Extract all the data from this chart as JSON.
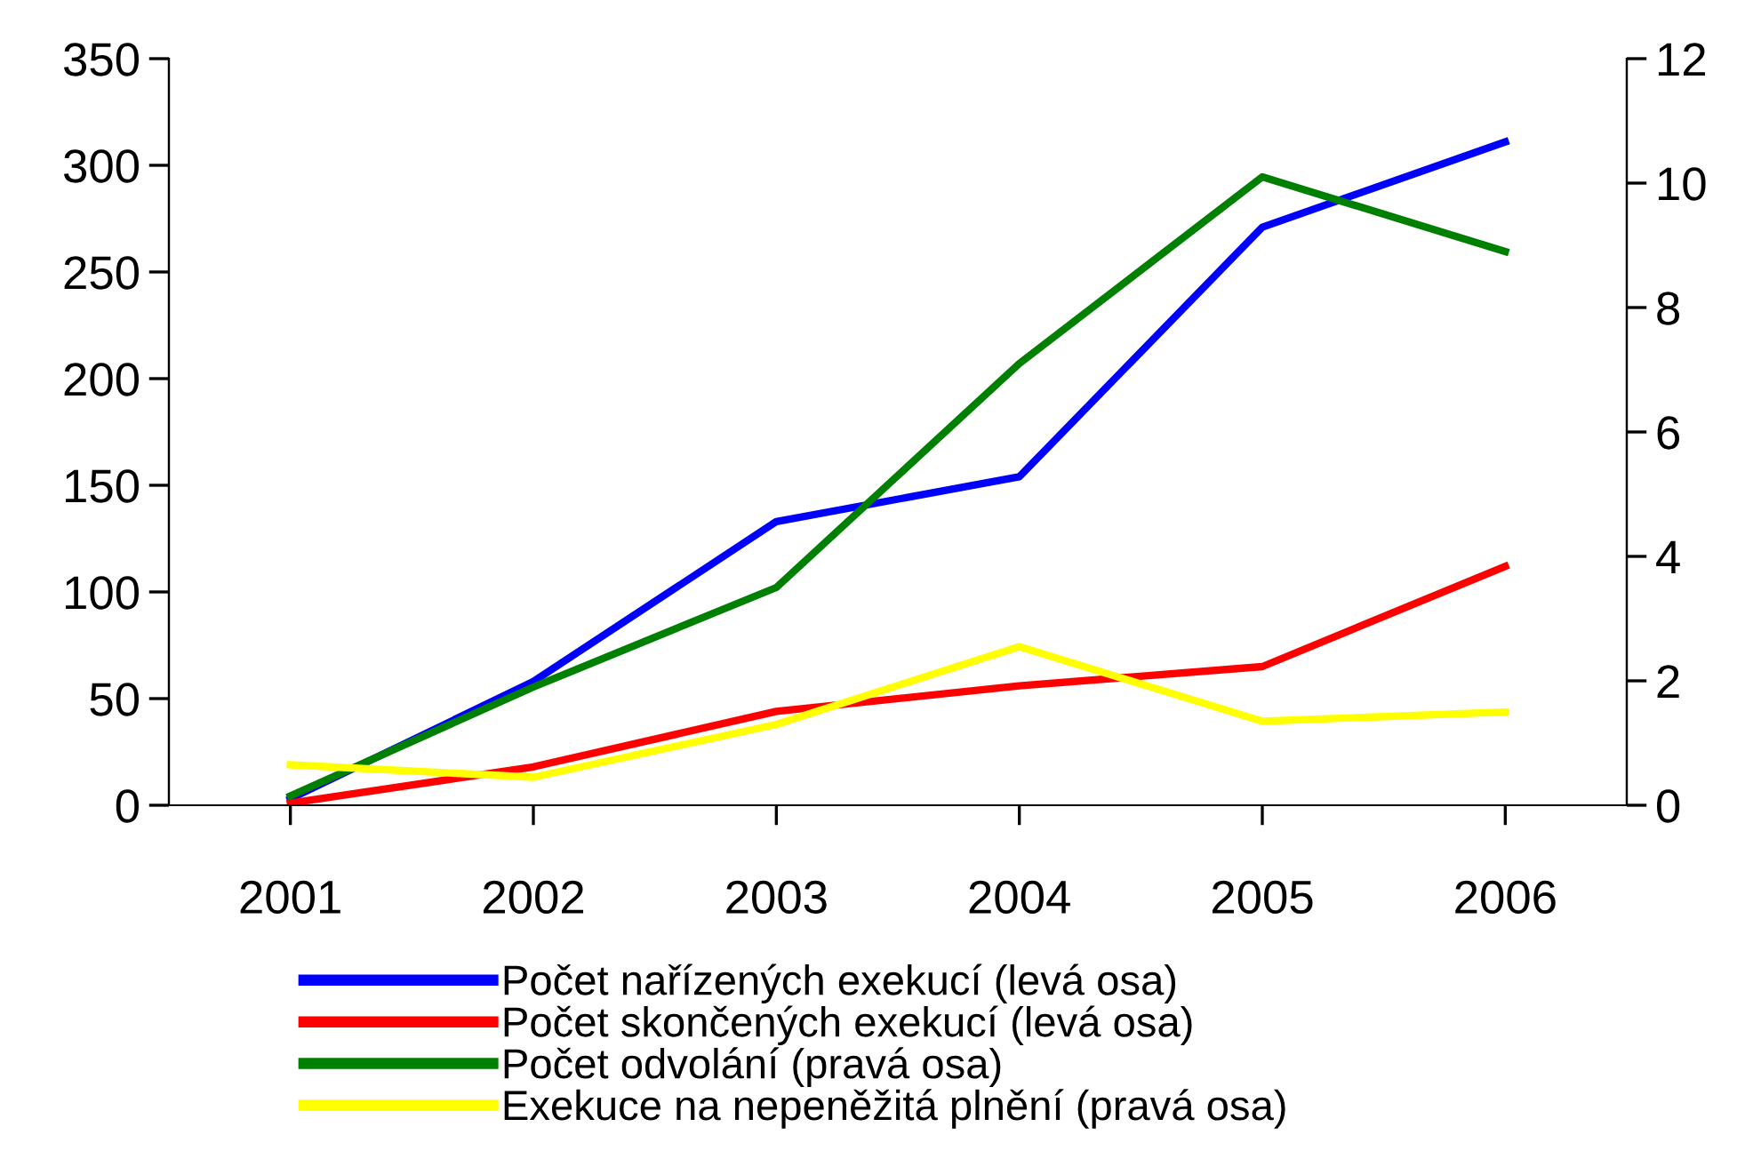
{
  "chart_data": {
    "type": "line",
    "categories": [
      "2001",
      "2002",
      "2003",
      "2004",
      "2005",
      "2006"
    ],
    "series": [
      {
        "name": "Počet nařízených exekucí (levá osa)",
        "color": "#0000ff",
        "values": [
          3,
          58,
          133,
          154,
          271,
          311
        ]
      },
      {
        "name": "Počet skončených exekucí (levá osa)",
        "color": "#ff0000",
        "values": [
          1,
          18,
          44,
          56,
          65,
          112
        ]
      },
      {
        "name": "Počet odvolání (pravá osa)",
        "color": "#008000",
        "axis": "y2",
        "values": [
          0.15,
          1.9,
          3.5,
          7.1,
          10.1,
          8.9
        ]
      },
      {
        "name": "Exekuce na nepeněžitá plnění (pravá osa)",
        "color": "#ffff00",
        "axis": "y2",
        "values": [
          0.65,
          0.45,
          1.3,
          2.55,
          1.35,
          1.5
        ]
      }
    ],
    "ylim": [
      0,
      350
    ],
    "yticks": [
      0,
      50,
      100,
      150,
      200,
      250,
      300,
      350
    ],
    "y2lim": [
      0,
      12
    ],
    "y2ticks": [
      0,
      2,
      4,
      6,
      8,
      10,
      12
    ],
    "grid": false,
    "legend": "bottom",
    "marker": "none",
    "line_style": "solid"
  }
}
